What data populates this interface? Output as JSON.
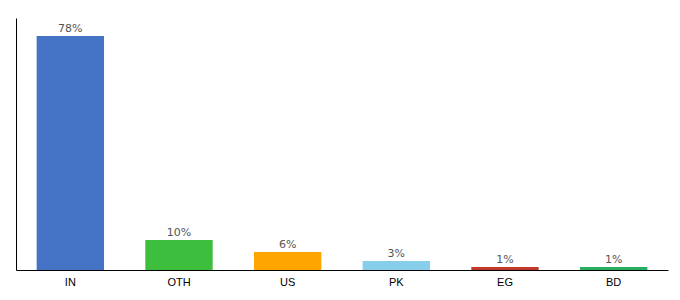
{
  "chart_data": {
    "type": "bar",
    "categories": [
      "IN",
      "OTH",
      "US",
      "PK",
      "EG",
      "BD"
    ],
    "values": [
      78,
      10,
      6,
      3,
      1,
      1
    ],
    "value_labels": [
      "78%",
      "10%",
      "6%",
      "3%",
      "1%",
      "1%"
    ],
    "colors": [
      "#4472C4",
      "#3DBE3D",
      "#FFA500",
      "#87CEEB",
      "#C0392B",
      "#27AE60"
    ],
    "ylim": [
      0,
      84
    ],
    "grid": false,
    "data_labels": true,
    "tick_labels": "x"
  }
}
